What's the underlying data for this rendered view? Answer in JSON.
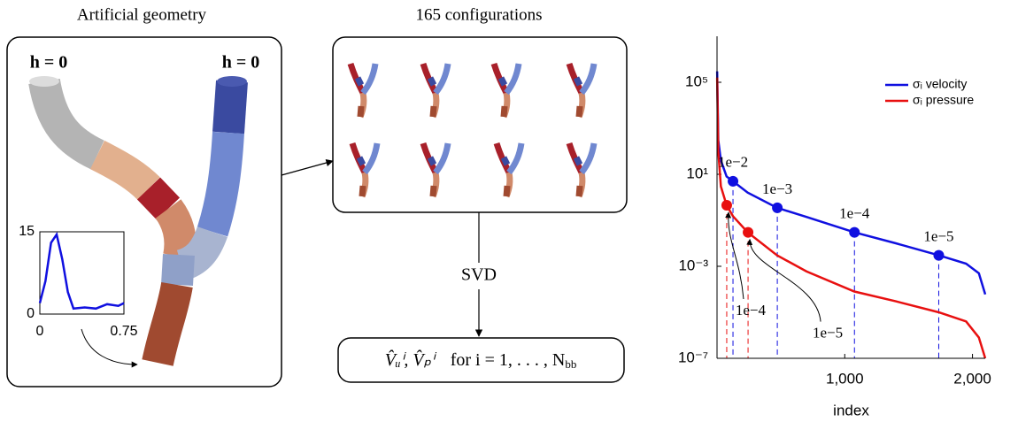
{
  "panels": {
    "geometry_title": "Artificial geometry",
    "h_left": "h = 0",
    "h_right": "h = 0",
    "config_title": "165 configurations",
    "svd": "SVD",
    "formula": {
      "vectors": "V̂ᵤⁱ, V̂ₚⁱ",
      "range": "for i = 1, . . . , N",
      "range_sub": "bb"
    }
  },
  "chart_data": [
    {
      "type": "line",
      "xlabel": "index",
      "yscale": "log",
      "xlim": [
        0,
        2100
      ],
      "ylim": [
        1e-07,
        10000000.0
      ],
      "xticks": [
        {
          "value": 1000,
          "label": "1,000"
        },
        {
          "value": 2000,
          "label": "2,000"
        }
      ],
      "yticks": [
        {
          "value": 1e-07,
          "label": "10⁻⁷"
        },
        {
          "value": 0.001,
          "label": "10⁻³"
        },
        {
          "value": 10,
          "label": "10¹"
        },
        {
          "value": 100000,
          "label": "10⁵"
        }
      ],
      "legend": "upper right",
      "x": [
        1,
        10,
        30,
        75,
        125,
        240,
        470,
        700,
        1075,
        1400,
        1736,
        1950,
        2050,
        2100
      ],
      "series": [
        {
          "name": "σᵢ velocity",
          "color": "#1010e0",
          "values": [
            300000,
            300,
            40,
            8,
            5,
            1.6,
            0.35,
            0.14,
            0.03,
            0.01,
            0.003,
            0.0013,
            0.0005,
            6e-05
          ]
        },
        {
          "name": "σᵢ pressure",
          "color": "#e81010",
          "values": [
            160000,
            100,
            3,
            0.45,
            0.15,
            0.03,
            0.003,
            0.0006,
            8e-05,
            3e-05,
            1e-05,
            4e-06,
            8e-07,
            1e-07
          ]
        }
      ],
      "annotations": [
        {
          "label": "1e−2",
          "x": 125,
          "y": 5,
          "color": "#1010e0"
        },
        {
          "label": "1e−3",
          "x": 472,
          "y": 0.35,
          "color": "#1010e0"
        },
        {
          "label": "1e−4",
          "x": 1076,
          "y": 0.03,
          "color": "#1010e0"
        },
        {
          "label": "1e−5",
          "x": 1736,
          "y": 0.003,
          "color": "#1010e0"
        },
        {
          "label": "1e−4",
          "x": 76,
          "y": 0.45,
          "color": "#e81010"
        },
        {
          "label": "1e−5",
          "x": 243,
          "y": 0.03,
          "color": "#e81010"
        }
      ]
    },
    {
      "type": "line",
      "xlim": [
        0,
        0.75
      ],
      "ylim": [
        0,
        15
      ],
      "xticks": [
        0,
        0.75
      ],
      "yticks": [
        0,
        15
      ],
      "x": [
        0,
        0.05,
        0.1,
        0.15,
        0.2,
        0.25,
        0.3,
        0.4,
        0.5,
        0.6,
        0.7,
        0.75
      ],
      "series": [
        {
          "color": "#1010e0",
          "values": [
            2,
            6,
            13,
            14.5,
            10,
            4,
            1,
            1.2,
            1,
            1.8,
            1.5,
            2
          ]
        }
      ]
    }
  ]
}
